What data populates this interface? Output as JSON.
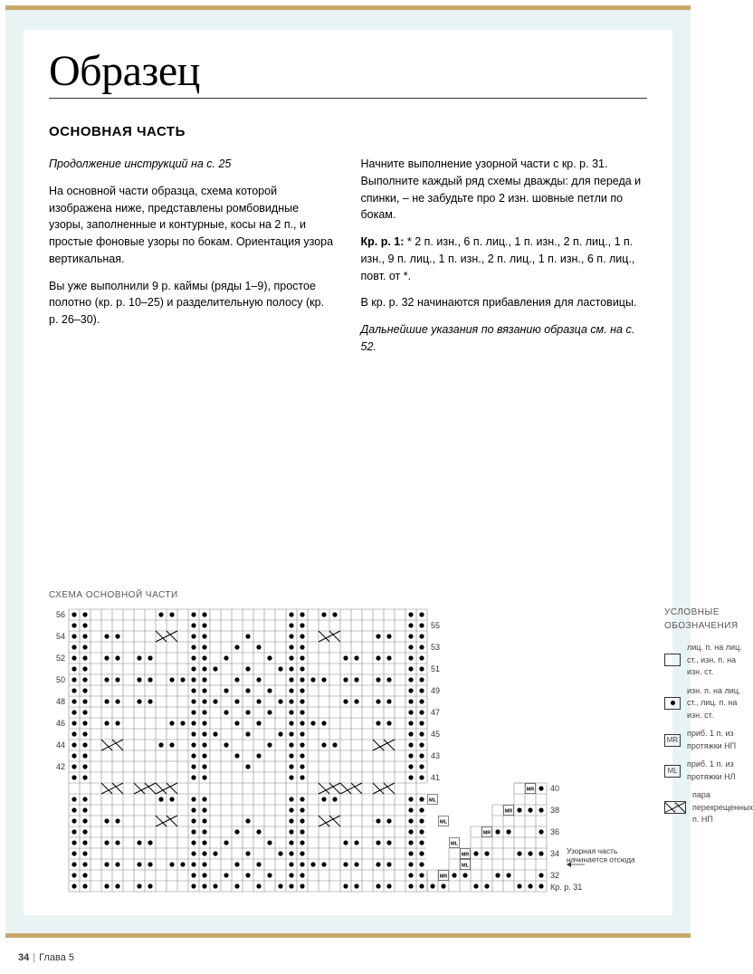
{
  "title": "Образец",
  "section_heading": "ОСНОВНАЯ ЧАСТЬ",
  "left_col": {
    "p1": "Продолжение инструкций на с. 25",
    "p2": "На основной части образца, схема которой изображена ниже, представлены ромбовидные узоры, заполненные и контурные, косы на 2 п., и простые фоновые узоры по бокам. Ориентация узора вертикальная.",
    "p3": "Вы уже выполнили 9 р. каймы (ряды 1–9), простое полотно (кр. р. 10–25) и разделительную полосу (кр. р. 26–30)."
  },
  "right_col": {
    "p1": "Начните выполнение узорной части с кр. р. 31. Выполните каждый ряд схемы дважды: для переда и спинки, – не забудьте про 2 изн. шовные петли по бокам.",
    "p2_label": "Кр. р. 1:",
    "p2_text": " * 2 п. изн., 6 п. лиц., 1 п. изн., 2 п. лиц., 1 п. изн., 9 п. лиц., 1 п. изн., 2 п. лиц., 1 п. изн., 6 п. лиц., повт. от *.",
    "p3": "В кр. р. 32 начинаются прибавления для ластовицы.",
    "p4": "Дальнейшие указания по вязанию образца см. на с. 52."
  },
  "chart": {
    "title": "СХЕМА ОСНОВНОЙ ЧАСТИ",
    "cell_size": 12,
    "cols": 33,
    "rows": 26,
    "gusset_cols": 11,
    "gusset_rows": 10,
    "left_labels": [
      56,
      54,
      52,
      50,
      48,
      46,
      44,
      42
    ],
    "right_labels": [
      55,
      53,
      51,
      49,
      47,
      45,
      43,
      41
    ],
    "gusset_right_labels": [
      40,
      38,
      36,
      34,
      32
    ],
    "gusset_bottom_label": "Кр. р. 31",
    "gusset_note_l1": "Узорная часть",
    "gusset_note_l2": "начинается отсюда",
    "colors": {
      "grid": "#888888",
      "dot": "#000000",
      "bg": "#ffffff"
    },
    "dots_main": [
      [
        0,
        0
      ],
      [
        0,
        1
      ],
      [
        0,
        8
      ],
      [
        0,
        9
      ],
      [
        0,
        11
      ],
      [
        0,
        12
      ],
      [
        0,
        20
      ],
      [
        0,
        21
      ],
      [
        0,
        23
      ],
      [
        0,
        24
      ],
      [
        0,
        31
      ],
      [
        0,
        32
      ],
      [
        1,
        0
      ],
      [
        1,
        1
      ],
      [
        1,
        11
      ],
      [
        1,
        12
      ],
      [
        1,
        20
      ],
      [
        1,
        21
      ],
      [
        1,
        31
      ],
      [
        1,
        32
      ],
      [
        2,
        0
      ],
      [
        2,
        1
      ],
      [
        2,
        3
      ],
      [
        2,
        4
      ],
      [
        2,
        11
      ],
      [
        2,
        12
      ],
      [
        2,
        16
      ],
      [
        2,
        20
      ],
      [
        2,
        21
      ],
      [
        2,
        28
      ],
      [
        2,
        29
      ],
      [
        2,
        31
      ],
      [
        2,
        32
      ],
      [
        3,
        0
      ],
      [
        3,
        1
      ],
      [
        3,
        11
      ],
      [
        3,
        12
      ],
      [
        3,
        15
      ],
      [
        3,
        17
      ],
      [
        3,
        20
      ],
      [
        3,
        21
      ],
      [
        3,
        31
      ],
      [
        3,
        32
      ],
      [
        4,
        0
      ],
      [
        4,
        1
      ],
      [
        4,
        3
      ],
      [
        4,
        4
      ],
      [
        4,
        6
      ],
      [
        4,
        7
      ],
      [
        4,
        11
      ],
      [
        4,
        12
      ],
      [
        4,
        14
      ],
      [
        4,
        18
      ],
      [
        4,
        20
      ],
      [
        4,
        21
      ],
      [
        4,
        25
      ],
      [
        4,
        26
      ],
      [
        4,
        28
      ],
      [
        4,
        29
      ],
      [
        4,
        31
      ],
      [
        4,
        32
      ],
      [
        5,
        0
      ],
      [
        5,
        1
      ],
      [
        5,
        11
      ],
      [
        5,
        12
      ],
      [
        5,
        13
      ],
      [
        5,
        16
      ],
      [
        5,
        19
      ],
      [
        5,
        20
      ],
      [
        5,
        21
      ],
      [
        5,
        31
      ],
      [
        5,
        32
      ],
      [
        6,
        0
      ],
      [
        6,
        1
      ],
      [
        6,
        3
      ],
      [
        6,
        4
      ],
      [
        6,
        6
      ],
      [
        6,
        7
      ],
      [
        6,
        9
      ],
      [
        6,
        10
      ],
      [
        6,
        11
      ],
      [
        6,
        12
      ],
      [
        6,
        15
      ],
      [
        6,
        17
      ],
      [
        6,
        20
      ],
      [
        6,
        21
      ],
      [
        6,
        22
      ],
      [
        6,
        23
      ],
      [
        6,
        25
      ],
      [
        6,
        26
      ],
      [
        6,
        28
      ],
      [
        6,
        29
      ],
      [
        6,
        31
      ],
      [
        6,
        32
      ],
      [
        7,
        0
      ],
      [
        7,
        1
      ],
      [
        7,
        11
      ],
      [
        7,
        12
      ],
      [
        7,
        14
      ],
      [
        7,
        16
      ],
      [
        7,
        18
      ],
      [
        7,
        20
      ],
      [
        7,
        21
      ],
      [
        7,
        31
      ],
      [
        7,
        32
      ],
      [
        8,
        0
      ],
      [
        8,
        1
      ],
      [
        8,
        3
      ],
      [
        8,
        4
      ],
      [
        8,
        6
      ],
      [
        8,
        7
      ],
      [
        8,
        11
      ],
      [
        8,
        12
      ],
      [
        8,
        13
      ],
      [
        8,
        15
      ],
      [
        8,
        17
      ],
      [
        8,
        19
      ],
      [
        8,
        20
      ],
      [
        8,
        21
      ],
      [
        8,
        25
      ],
      [
        8,
        26
      ],
      [
        8,
        28
      ],
      [
        8,
        29
      ],
      [
        8,
        31
      ],
      [
        8,
        32
      ],
      [
        9,
        0
      ],
      [
        9,
        1
      ],
      [
        9,
        11
      ],
      [
        9,
        12
      ],
      [
        9,
        14
      ],
      [
        9,
        16
      ],
      [
        9,
        18
      ],
      [
        9,
        20
      ],
      [
        9,
        21
      ],
      [
        9,
        31
      ],
      [
        9,
        32
      ],
      [
        10,
        0
      ],
      [
        10,
        1
      ],
      [
        10,
        3
      ],
      [
        10,
        4
      ],
      [
        10,
        9
      ],
      [
        10,
        10
      ],
      [
        10,
        11
      ],
      [
        10,
        12
      ],
      [
        10,
        15
      ],
      [
        10,
        17
      ],
      [
        10,
        20
      ],
      [
        10,
        21
      ],
      [
        10,
        22
      ],
      [
        10,
        23
      ],
      [
        10,
        28
      ],
      [
        10,
        29
      ],
      [
        10,
        31
      ],
      [
        10,
        32
      ],
      [
        11,
        0
      ],
      [
        11,
        1
      ],
      [
        11,
        11
      ],
      [
        11,
        12
      ],
      [
        11,
        13
      ],
      [
        11,
        16
      ],
      [
        11,
        19
      ],
      [
        11,
        20
      ],
      [
        11,
        21
      ],
      [
        11,
        31
      ],
      [
        11,
        32
      ],
      [
        12,
        0
      ],
      [
        12,
        1
      ],
      [
        12,
        8
      ],
      [
        12,
        9
      ],
      [
        12,
        11
      ],
      [
        12,
        12
      ],
      [
        12,
        14
      ],
      [
        12,
        18
      ],
      [
        12,
        20
      ],
      [
        12,
        21
      ],
      [
        12,
        23
      ],
      [
        12,
        24
      ],
      [
        12,
        31
      ],
      [
        12,
        32
      ],
      [
        13,
        0
      ],
      [
        13,
        1
      ],
      [
        13,
        11
      ],
      [
        13,
        12
      ],
      [
        13,
        15
      ],
      [
        13,
        17
      ],
      [
        13,
        20
      ],
      [
        13,
        21
      ],
      [
        13,
        31
      ],
      [
        13,
        32
      ],
      [
        14,
        0
      ],
      [
        14,
        1
      ],
      [
        14,
        11
      ],
      [
        14,
        12
      ],
      [
        14,
        16
      ],
      [
        14,
        20
      ],
      [
        14,
        21
      ],
      [
        14,
        31
      ],
      [
        14,
        32
      ],
      [
        15,
        0
      ],
      [
        15,
        1
      ],
      [
        15,
        11
      ],
      [
        15,
        12
      ],
      [
        15,
        20
      ],
      [
        15,
        21
      ],
      [
        15,
        31
      ],
      [
        15,
        32
      ],
      [
        17,
        0
      ],
      [
        17,
        1
      ],
      [
        17,
        8
      ],
      [
        17,
        9
      ],
      [
        17,
        11
      ],
      [
        17,
        12
      ],
      [
        17,
        20
      ],
      [
        17,
        21
      ],
      [
        17,
        23
      ],
      [
        17,
        24
      ],
      [
        17,
        31
      ],
      [
        17,
        32
      ],
      [
        18,
        0
      ],
      [
        18,
        1
      ],
      [
        18,
        11
      ],
      [
        18,
        12
      ],
      [
        18,
        20
      ],
      [
        18,
        21
      ],
      [
        18,
        31
      ],
      [
        18,
        32
      ],
      [
        19,
        0
      ],
      [
        19,
        1
      ],
      [
        19,
        3
      ],
      [
        19,
        4
      ],
      [
        19,
        11
      ],
      [
        19,
        12
      ],
      [
        19,
        16
      ],
      [
        19,
        20
      ],
      [
        19,
        21
      ],
      [
        19,
        28
      ],
      [
        19,
        29
      ],
      [
        19,
        31
      ],
      [
        19,
        32
      ],
      [
        20,
        0
      ],
      [
        20,
        1
      ],
      [
        20,
        11
      ],
      [
        20,
        12
      ],
      [
        20,
        15
      ],
      [
        20,
        17
      ],
      [
        20,
        20
      ],
      [
        20,
        21
      ],
      [
        20,
        31
      ],
      [
        20,
        32
      ],
      [
        21,
        0
      ],
      [
        21,
        1
      ],
      [
        21,
        3
      ],
      [
        21,
        4
      ],
      [
        21,
        6
      ],
      [
        21,
        7
      ],
      [
        21,
        11
      ],
      [
        21,
        12
      ],
      [
        21,
        14
      ],
      [
        21,
        18
      ],
      [
        21,
        20
      ],
      [
        21,
        21
      ],
      [
        21,
        25
      ],
      [
        21,
        26
      ],
      [
        21,
        28
      ],
      [
        21,
        29
      ],
      [
        21,
        31
      ],
      [
        21,
        32
      ],
      [
        22,
        0
      ],
      [
        22,
        1
      ],
      [
        22,
        11
      ],
      [
        22,
        12
      ],
      [
        22,
        13
      ],
      [
        22,
        16
      ],
      [
        22,
        19
      ],
      [
        22,
        20
      ],
      [
        22,
        21
      ],
      [
        22,
        31
      ],
      [
        22,
        32
      ],
      [
        23,
        0
      ],
      [
        23,
        1
      ],
      [
        23,
        3
      ],
      [
        23,
        4
      ],
      [
        23,
        6
      ],
      [
        23,
        7
      ],
      [
        23,
        9
      ],
      [
        23,
        10
      ],
      [
        23,
        11
      ],
      [
        23,
        12
      ],
      [
        23,
        15
      ],
      [
        23,
        17
      ],
      [
        23,
        20
      ],
      [
        23,
        21
      ],
      [
        23,
        22
      ],
      [
        23,
        23
      ],
      [
        23,
        25
      ],
      [
        23,
        26
      ],
      [
        23,
        28
      ],
      [
        23,
        29
      ],
      [
        23,
        31
      ],
      [
        23,
        32
      ],
      [
        24,
        0
      ],
      [
        24,
        1
      ],
      [
        24,
        11
      ],
      [
        24,
        12
      ],
      [
        24,
        14
      ],
      [
        24,
        16
      ],
      [
        24,
        18
      ],
      [
        24,
        20
      ],
      [
        24,
        21
      ],
      [
        24,
        31
      ],
      [
        24,
        32
      ],
      [
        25,
        0
      ],
      [
        25,
        1
      ],
      [
        25,
        3
      ],
      [
        25,
        4
      ],
      [
        25,
        6
      ],
      [
        25,
        7
      ],
      [
        25,
        11
      ],
      [
        25,
        12
      ],
      [
        25,
        13
      ],
      [
        25,
        15
      ],
      [
        25,
        17
      ],
      [
        25,
        19
      ],
      [
        25,
        20
      ],
      [
        25,
        21
      ],
      [
        25,
        25
      ],
      [
        25,
        26
      ],
      [
        25,
        28
      ],
      [
        25,
        29
      ],
      [
        25,
        31
      ],
      [
        25,
        32
      ]
    ],
    "crosses_main": [
      [
        2,
        8,
        9
      ],
      [
        2,
        23,
        24
      ],
      [
        12,
        3,
        4
      ],
      [
        12,
        28,
        29
      ],
      [
        16,
        8,
        9
      ],
      [
        16,
        23,
        24
      ],
      [
        16,
        3,
        4
      ],
      [
        16,
        28,
        29
      ],
      [
        16,
        6,
        7
      ],
      [
        16,
        25,
        26
      ],
      [
        19,
        8,
        9
      ],
      [
        19,
        23,
        24
      ]
    ],
    "gusset_dots": [
      [
        0,
        10
      ],
      [
        2,
        8
      ],
      [
        2,
        9
      ],
      [
        2,
        10
      ],
      [
        4,
        6
      ],
      [
        4,
        7
      ],
      [
        4,
        10
      ],
      [
        6,
        4
      ],
      [
        6,
        5
      ],
      [
        6,
        8
      ],
      [
        6,
        9
      ],
      [
        6,
        10
      ],
      [
        8,
        2
      ],
      [
        8,
        3
      ],
      [
        8,
        6
      ],
      [
        8,
        7
      ],
      [
        8,
        10
      ],
      [
        9,
        0
      ],
      [
        9,
        1
      ],
      [
        9,
        4
      ],
      [
        9,
        5
      ],
      [
        9,
        8
      ],
      [
        9,
        9
      ],
      [
        9,
        10
      ]
    ],
    "gusset_mr": [
      [
        0,
        9
      ],
      [
        2,
        7
      ],
      [
        4,
        5
      ],
      [
        6,
        3
      ],
      [
        8,
        1
      ]
    ],
    "gusset_ml": [
      [
        1,
        0
      ],
      [
        3,
        1
      ],
      [
        5,
        2
      ],
      [
        7,
        3
      ]
    ]
  },
  "legend": {
    "title": "УСЛОВНЫЕ ОБОЗНАЧЕНИЯ",
    "items": [
      {
        "sym": "blank",
        "text": "лиц. п. на лиц. ст., изн. п. на изн. ст."
      },
      {
        "sym": "dot",
        "text": "изн. п. на лиц. ст., лиц. п. на изн. ст."
      },
      {
        "sym": "MR",
        "text": "приб. 1 п. из протяжки НП"
      },
      {
        "sym": "ML",
        "text": "приб. 1 п. из протяжки НЛ"
      },
      {
        "sym": "cross",
        "text": "пара перекрещенных п. НП"
      }
    ]
  },
  "footer": {
    "page": "34",
    "chapter": "Глава 5"
  }
}
